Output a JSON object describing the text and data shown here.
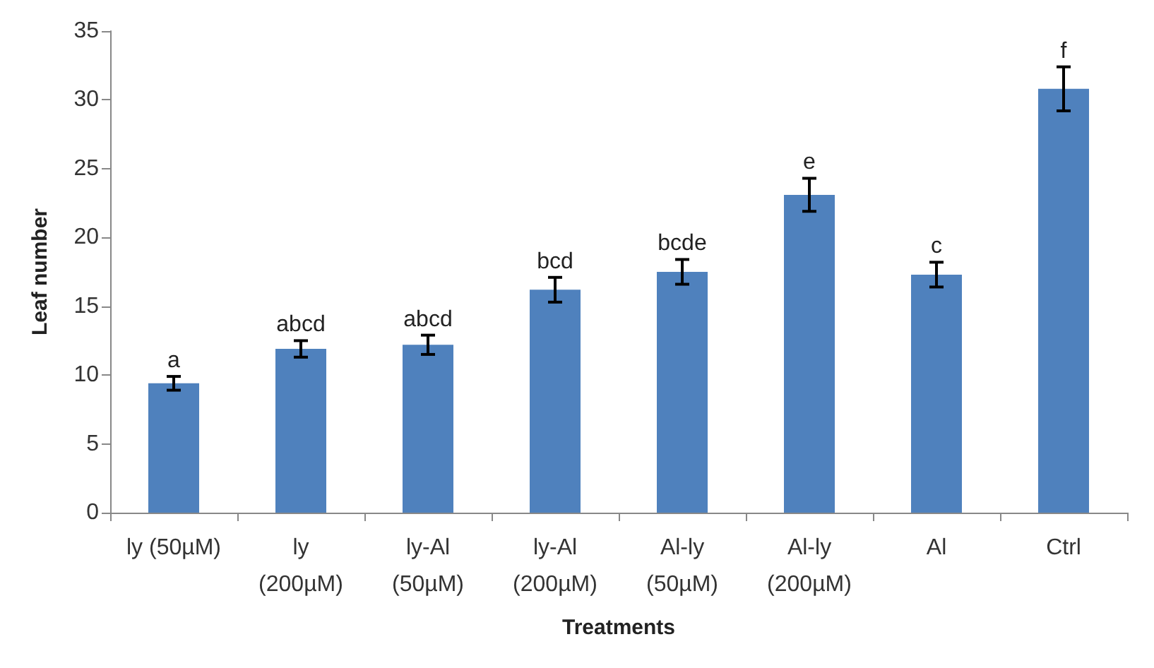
{
  "chart_data": {
    "type": "bar",
    "xlabel": "Treatments",
    "ylabel": "Leaf number",
    "categories": [
      "ly (50µM)",
      "ly\n(200µM)",
      "ly-Al\n(50µM)",
      "ly-Al\n(200µM)",
      "Al-ly\n(50µM)",
      "Al-ly\n(200µM)",
      "Al",
      "Ctrl"
    ],
    "values": [
      9.4,
      11.9,
      12.2,
      16.2,
      17.5,
      23.1,
      17.3,
      30.8
    ],
    "errors": [
      0.5,
      0.6,
      0.7,
      0.9,
      0.9,
      1.2,
      0.9,
      1.6
    ],
    "color": "#4f81bd",
    "ylim": [
      0,
      35
    ],
    "yticks": [
      0,
      5,
      10,
      15,
      20,
      25,
      30,
      35
    ],
    "grid": false,
    "annotations": [
      {
        "text": "a",
        "x": "ly (50µM)",
        "y": 9.9
      },
      {
        "text": "abcd",
        "x": "ly\n(200µM)",
        "y": 12.5
      },
      {
        "text": "abcd",
        "x": "ly-Al\n(50µM)",
        "y": 12.9
      },
      {
        "text": "bcd",
        "x": "ly-Al\n(200µM)",
        "y": 17.1
      },
      {
        "text": "bcde",
        "x": "Al-ly\n(50µM)",
        "y": 18.4
      },
      {
        "text": "e",
        "x": "Al-ly\n(200µM)",
        "y": 24.3
      },
      {
        "text": "c",
        "x": "Al",
        "y": 18.2
      },
      {
        "text": "f",
        "x": "Ctrl",
        "y": 32.4
      }
    ]
  }
}
